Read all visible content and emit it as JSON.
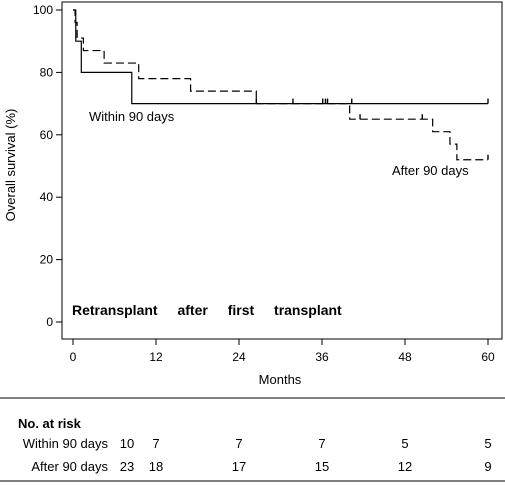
{
  "chart_data": {
    "type": "line",
    "subtype": "kaplan-meier",
    "title": "Retransplant after first transplant",
    "xlabel": "Months",
    "ylabel": "Overall survival (%)",
    "xlim": [
      0,
      60
    ],
    "ylim": [
      0,
      100
    ],
    "xticks": [
      0,
      12,
      24,
      36,
      48,
      60
    ],
    "yticks": [
      0,
      20,
      40,
      60,
      80,
      100
    ],
    "grid": false,
    "series": [
      {
        "name": "Within 90 days",
        "style": "solid",
        "color": "#000000",
        "steps": [
          [
            0,
            100
          ],
          [
            0.4,
            90
          ],
          [
            1.2,
            80
          ],
          [
            8.5,
            70
          ],
          [
            60,
            70
          ]
        ],
        "censored": [
          31.8,
          36.1,
          36.8,
          40.3,
          60
        ]
      },
      {
        "name": "After 90 days",
        "style": "dashed",
        "color": "#000000",
        "steps": [
          [
            0,
            100
          ],
          [
            0.3,
            96
          ],
          [
            0.6,
            91
          ],
          [
            1.5,
            87
          ],
          [
            4.5,
            83
          ],
          [
            9.5,
            78
          ],
          [
            17,
            74
          ],
          [
            26.5,
            70
          ],
          [
            40,
            65
          ],
          [
            52,
            61
          ],
          [
            54.5,
            57
          ],
          [
            55.5,
            52
          ],
          [
            60,
            52
          ]
        ],
        "censored": [
          26.5,
          36.5,
          41.5,
          50.5,
          60
        ]
      }
    ],
    "risk_table": {
      "title": "No. at risk",
      "rows": [
        {
          "label": "Within 90 days",
          "values": [
            "10",
            "7",
            "7",
            "7",
            "5",
            "5"
          ]
        },
        {
          "label": "After 90 days",
          "values": [
            "23",
            "18",
            "17",
            "15",
            "12",
            "9"
          ]
        }
      ]
    }
  }
}
